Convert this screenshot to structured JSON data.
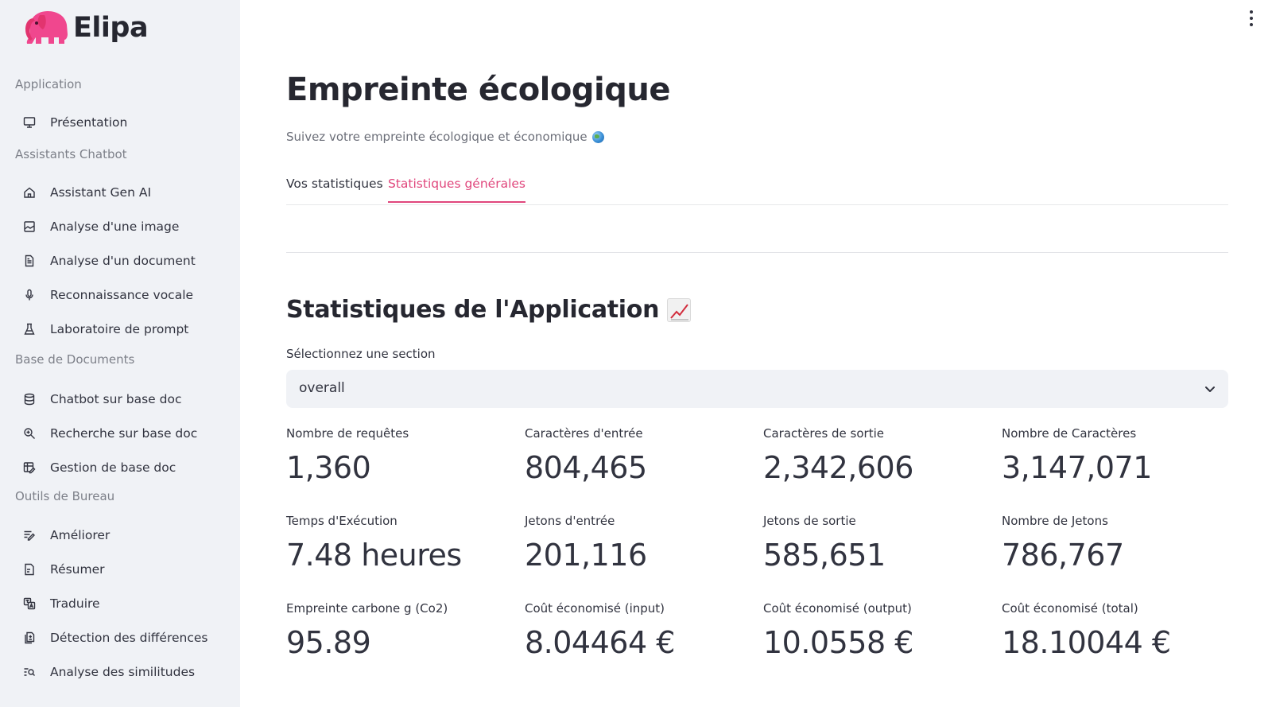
{
  "app": {
    "name": "Elipa",
    "brand_color": "#e0467c"
  },
  "sidebar": {
    "groups": [
      {
        "label": "Application",
        "items": [
          {
            "label": "Présentation",
            "icon": "monitor-icon"
          }
        ]
      },
      {
        "label": "Assistants Chatbot",
        "items": [
          {
            "label": "Assistant Gen AI",
            "icon": "home-icon"
          },
          {
            "label": "Analyse d'une image",
            "icon": "image-icon"
          },
          {
            "label": "Analyse d'un document",
            "icon": "document-icon"
          },
          {
            "label": "Reconnaissance vocale",
            "icon": "microphone-icon"
          },
          {
            "label": "Laboratoire de prompt",
            "icon": "flask-icon"
          }
        ]
      },
      {
        "label": "Base de Documents",
        "items": [
          {
            "label": "Chatbot sur base doc",
            "icon": "database-icon"
          },
          {
            "label": "Recherche sur base doc",
            "icon": "search-doc-icon"
          },
          {
            "label": "Gestion de base doc",
            "icon": "edit-table-icon"
          }
        ]
      },
      {
        "label": "Outils de Bureau",
        "items": [
          {
            "label": "Améliorer",
            "icon": "improve-text-icon"
          },
          {
            "label": "Résumer",
            "icon": "summary-icon"
          },
          {
            "label": "Traduire",
            "icon": "translate-icon"
          },
          {
            "label": "Détection des différences",
            "icon": "diff-icon"
          },
          {
            "label": "Analyse des similitudes",
            "icon": "similarity-icon"
          }
        ]
      }
    ]
  },
  "main": {
    "title": "Empreinte écologique",
    "subtitle": "Suivez votre empreinte écologique et économique",
    "tabs": [
      {
        "label": "Vos statistiques",
        "active": false
      },
      {
        "label": "Statistiques générales",
        "active": true
      }
    ],
    "section_title": "Statistiques de l'Application",
    "select": {
      "label": "Sélectionnez une section",
      "value": "overall"
    },
    "metrics": [
      {
        "label": "Nombre de requêtes",
        "value": "1,360"
      },
      {
        "label": "Caractères d'entrée",
        "value": "804,465"
      },
      {
        "label": "Caractères de sortie",
        "value": "2,342,606"
      },
      {
        "label": "Nombre de Caractères",
        "value": "3,147,071"
      },
      {
        "label": "Temps d'Exécution",
        "value": "7.48 heures"
      },
      {
        "label": "Jetons d'entrée",
        "value": "201,116"
      },
      {
        "label": "Jetons de sortie",
        "value": "585,651"
      },
      {
        "label": "Nombre de Jetons",
        "value": "786,767"
      },
      {
        "label": "Empreinte carbone g (Co2)",
        "value": "95.89"
      },
      {
        "label": "Coût économisé (input)",
        "value": "8.04464 €"
      },
      {
        "label": "Coût économisé (output)",
        "value": "10.0558 €"
      },
      {
        "label": "Coût économisé (total)",
        "value": "18.10044 €"
      }
    ]
  }
}
